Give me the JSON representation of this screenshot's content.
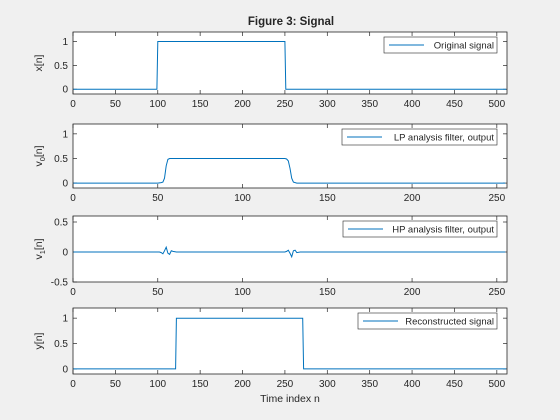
{
  "figure": {
    "title": "Figure 3: Signal",
    "xlabel": "Time index n",
    "background": "#f0f0f0",
    "axes_bg": "#ffffff",
    "line_color": "#0072bd"
  },
  "chart_data": [
    {
      "type": "line",
      "ylabel": "x[n]",
      "ylabel_sub": "",
      "legend": "Original signal",
      "legend_position": "top-right",
      "xlim": [
        0,
        512
      ],
      "ylim": [
        -0.1,
        1.2
      ],
      "xticks": [
        0,
        50,
        100,
        150,
        200,
        250,
        300,
        350,
        400,
        450,
        500
      ],
      "yticks": [
        0,
        0.5,
        1
      ],
      "series": [
        {
          "x": [
            0,
            99,
            100,
            250,
            251,
            511
          ],
          "y": [
            0,
            0,
            1,
            1,
            0,
            0
          ]
        }
      ]
    },
    {
      "type": "line",
      "ylabel": "v",
      "ylabel_sub": "0",
      "ylabel_suffix": "[n]",
      "legend": "LP analysis filter, output",
      "legend_position": "top-right",
      "xlim": [
        0,
        256
      ],
      "ylim": [
        -0.1,
        1.2
      ],
      "xticks": [
        0,
        50,
        100,
        150,
        200,
        250
      ],
      "yticks": [
        0,
        0.5,
        1
      ],
      "series": [
        {
          "x": [
            0,
            50,
            52,
            53,
            54,
            55,
            56,
            57,
            125,
            126,
            127,
            128,
            129,
            130,
            132,
            255
          ],
          "y": [
            0,
            0,
            0.01,
            0.02,
            0.1,
            0.35,
            0.48,
            0.5,
            0.5,
            0.49,
            0.45,
            0.3,
            0.1,
            0.02,
            0,
            0
          ]
        }
      ]
    },
    {
      "type": "line",
      "ylabel": "v",
      "ylabel_sub": "1",
      "ylabel_suffix": "[n]",
      "legend": "HP analysis filter, output",
      "legend_position": "top-right",
      "xlim": [
        0,
        256
      ],
      "ylim": [
        -0.5,
        0.6
      ],
      "xticks": [
        0,
        50,
        100,
        150,
        200,
        250
      ],
      "yticks": [
        -0.5,
        0,
        0.5
      ],
      "series": [
        {
          "x": [
            0,
            51,
            52,
            53,
            54,
            55,
            56,
            57,
            58,
            59,
            61,
            125,
            126,
            127,
            128,
            129,
            130,
            131,
            132,
            134,
            255
          ],
          "y": [
            0,
            0,
            -0.01,
            -0.03,
            0.02,
            0.08,
            -0.02,
            -0.04,
            0.02,
            0.01,
            0,
            0,
            0.01,
            0.03,
            -0.02,
            -0.08,
            0.02,
            0.03,
            -0.01,
            0,
            0
          ]
        }
      ]
    },
    {
      "type": "line",
      "ylabel": "y[n]",
      "ylabel_sub": "",
      "legend": "Reconstructed signal",
      "legend_position": "top-right",
      "xlim": [
        0,
        512
      ],
      "ylim": [
        -0.1,
        1.2
      ],
      "xticks": [
        0,
        50,
        100,
        150,
        200,
        250,
        300,
        350,
        400,
        450,
        500
      ],
      "yticks": [
        0,
        0.5,
        1
      ],
      "series": [
        {
          "x": [
            0,
            121,
            122,
            271,
            272,
            511
          ],
          "y": [
            0,
            0,
            1,
            1,
            0,
            0
          ]
        }
      ]
    }
  ]
}
